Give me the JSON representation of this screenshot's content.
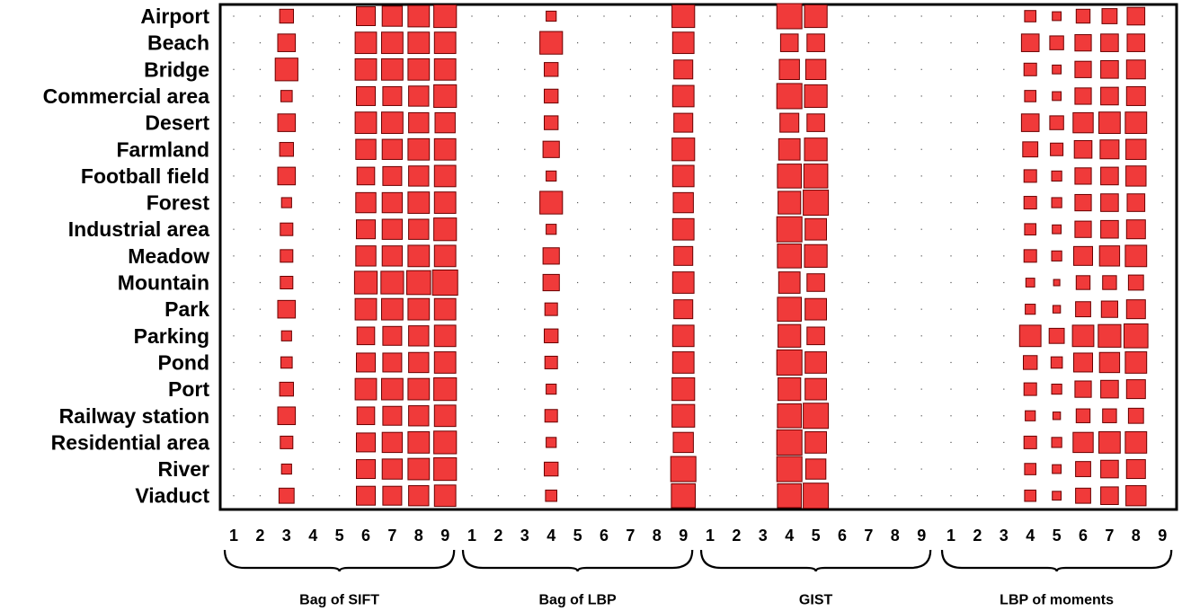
{
  "chart_data": {
    "type": "heatmap",
    "encoding": "square size is proportional to value (0 = empty cell, 1 = largest square)",
    "rows": [
      "Airport",
      "Beach",
      "Bridge",
      "Commercial area",
      "Desert",
      "Farmland",
      "Football field",
      "Forest",
      "Industrial area",
      "Meadow",
      "Mountain",
      "Park",
      "Parking",
      "Pond",
      "Port",
      "Railway station",
      "Residential area",
      "River",
      "Viaduct"
    ],
    "columns": [
      "1",
      "2",
      "3",
      "4",
      "5",
      "6",
      "7",
      "8",
      "9"
    ],
    "groups": [
      {
        "name": "Bag of SIFT",
        "values": [
          [
            0,
            0,
            0.55,
            0,
            0,
            0.75,
            0.8,
            0.85,
            0.9
          ],
          [
            0,
            0,
            0.7,
            0,
            0,
            0.85,
            0.85,
            0.85,
            0.85
          ],
          [
            0,
            0,
            0.9,
            0,
            0,
            0.85,
            0.85,
            0.85,
            0.85
          ],
          [
            0,
            0,
            0.45,
            0,
            0,
            0.75,
            0.75,
            0.8,
            0.9
          ],
          [
            0,
            0,
            0.7,
            0,
            0,
            0.85,
            0.85,
            0.8,
            0.8
          ],
          [
            0,
            0,
            0.55,
            0,
            0,
            0.8,
            0.8,
            0.85,
            0.85
          ],
          [
            0,
            0,
            0.7,
            0,
            0,
            0.7,
            0.75,
            0.8,
            0.85
          ],
          [
            0,
            0,
            0.4,
            0,
            0,
            0.8,
            0.8,
            0.85,
            0.85
          ],
          [
            0,
            0,
            0.5,
            0,
            0,
            0.75,
            0.8,
            0.8,
            0.9
          ],
          [
            0,
            0,
            0.5,
            0,
            0,
            0.8,
            0.8,
            0.85,
            0.85
          ],
          [
            0,
            0,
            0.5,
            0,
            0,
            0.9,
            0.9,
            0.95,
            1.0
          ],
          [
            0,
            0,
            0.7,
            0,
            0,
            0.85,
            0.85,
            0.85,
            0.85
          ],
          [
            0,
            0,
            0.4,
            0,
            0,
            0.7,
            0.75,
            0.8,
            0.85
          ],
          [
            0,
            0,
            0.45,
            0,
            0,
            0.75,
            0.75,
            0.8,
            0.85
          ],
          [
            0,
            0,
            0.55,
            0,
            0,
            0.85,
            0.85,
            0.85,
            0.9
          ],
          [
            0,
            0,
            0.7,
            0,
            0,
            0.7,
            0.75,
            0.8,
            0.85
          ],
          [
            0,
            0,
            0.5,
            0,
            0,
            0.75,
            0.8,
            0.85,
            0.9
          ],
          [
            0,
            0,
            0.4,
            0,
            0,
            0.75,
            0.8,
            0.85,
            0.9
          ],
          [
            0,
            0,
            0.6,
            0,
            0,
            0.75,
            0.75,
            0.8,
            0.85
          ]
        ]
      },
      {
        "name": "Bag of LBP",
        "values": [
          [
            0,
            0,
            0,
            0.4,
            0,
            0,
            0,
            0,
            0.9
          ],
          [
            0,
            0,
            0,
            0.9,
            0,
            0,
            0,
            0,
            0.85
          ],
          [
            0,
            0,
            0,
            0.55,
            0,
            0,
            0,
            0,
            0.75
          ],
          [
            0,
            0,
            0,
            0.55,
            0,
            0,
            0,
            0,
            0.85
          ],
          [
            0,
            0,
            0,
            0.55,
            0,
            0,
            0,
            0,
            0.75
          ],
          [
            0,
            0,
            0,
            0.65,
            0,
            0,
            0,
            0,
            0.9
          ],
          [
            0,
            0,
            0,
            0.4,
            0,
            0,
            0,
            0,
            0.85
          ],
          [
            0,
            0,
            0,
            0.9,
            0,
            0,
            0,
            0,
            0.8
          ],
          [
            0,
            0,
            0,
            0.4,
            0,
            0,
            0,
            0,
            0.85
          ],
          [
            0,
            0,
            0,
            0.65,
            0,
            0,
            0,
            0,
            0.75
          ],
          [
            0,
            0,
            0,
            0.65,
            0,
            0,
            0,
            0,
            0.85
          ],
          [
            0,
            0,
            0,
            0.5,
            0,
            0,
            0,
            0,
            0.75
          ],
          [
            0,
            0,
            0,
            0.55,
            0,
            0,
            0,
            0,
            0.85
          ],
          [
            0,
            0,
            0,
            0.5,
            0,
            0,
            0,
            0,
            0.85
          ],
          [
            0,
            0,
            0,
            0.4,
            0,
            0,
            0,
            0,
            0.9
          ],
          [
            0,
            0,
            0,
            0.5,
            0,
            0,
            0,
            0,
            0.9
          ],
          [
            0,
            0,
            0,
            0.4,
            0,
            0,
            0,
            0,
            0.8
          ],
          [
            0,
            0,
            0,
            0.55,
            0,
            0,
            0,
            0,
            1.0
          ],
          [
            0,
            0,
            0,
            0.45,
            0,
            0,
            0,
            0,
            0.95
          ]
        ]
      },
      {
        "name": "GIST",
        "values": [
          [
            0,
            0,
            0,
            1.0,
            0.9,
            0,
            0,
            0,
            0
          ],
          [
            0,
            0,
            0,
            0.7,
            0.7,
            0,
            0,
            0,
            0
          ],
          [
            0,
            0,
            0,
            0.8,
            0.8,
            0,
            0,
            0,
            0
          ],
          [
            0,
            0,
            0,
            1.0,
            0.9,
            0,
            0,
            0,
            0
          ],
          [
            0,
            0,
            0,
            0.75,
            0.7,
            0,
            0,
            0,
            0
          ],
          [
            0,
            0,
            0,
            0.85,
            0.9,
            0,
            0,
            0,
            0
          ],
          [
            0,
            0,
            0,
            0.95,
            0.95,
            0,
            0,
            0,
            0
          ],
          [
            0,
            0,
            0,
            0.9,
            1.0,
            0,
            0,
            0,
            0
          ],
          [
            0,
            0,
            0,
            1.0,
            0.85,
            0,
            0,
            0,
            0
          ],
          [
            0,
            0,
            0,
            0.95,
            0.9,
            0,
            0,
            0,
            0
          ],
          [
            0,
            0,
            0,
            0.85,
            0.7,
            0,
            0,
            0,
            0
          ],
          [
            0,
            0,
            0,
            0.95,
            0.85,
            0,
            0,
            0,
            0
          ],
          [
            0,
            0,
            0,
            0.9,
            0.7,
            0,
            0,
            0,
            0
          ],
          [
            0,
            0,
            0,
            1.0,
            0.85,
            0,
            0,
            0,
            0
          ],
          [
            0,
            0,
            0,
            0.9,
            0.85,
            0,
            0,
            0,
            0
          ],
          [
            0,
            0,
            0,
            0.95,
            1.0,
            0,
            0,
            0,
            0
          ],
          [
            0,
            0,
            0,
            1.0,
            0.85,
            0,
            0,
            0,
            0
          ],
          [
            0,
            0,
            0,
            1.0,
            0.8,
            0,
            0,
            0,
            0
          ],
          [
            0,
            0,
            0,
            0.95,
            1.0,
            0,
            0,
            0,
            0
          ]
        ]
      },
      {
        "name": "LBP of moments",
        "values": [
          [
            0,
            0,
            0,
            0.45,
            0.35,
            0.55,
            0.6,
            0.7,
            0
          ],
          [
            0,
            0,
            0,
            0.7,
            0.55,
            0.65,
            0.7,
            0.7,
            0
          ],
          [
            0,
            0,
            0,
            0.5,
            0.35,
            0.65,
            0.7,
            0.75,
            0
          ],
          [
            0,
            0,
            0,
            0.45,
            0.35,
            0.65,
            0.7,
            0.75,
            0
          ],
          [
            0,
            0,
            0,
            0.7,
            0.55,
            0.8,
            0.85,
            0.85,
            0
          ],
          [
            0,
            0,
            0,
            0.6,
            0.5,
            0.7,
            0.75,
            0.8,
            0
          ],
          [
            0,
            0,
            0,
            0.5,
            0.4,
            0.65,
            0.7,
            0.8,
            0
          ],
          [
            0,
            0,
            0,
            0.5,
            0.4,
            0.65,
            0.7,
            0.7,
            0
          ],
          [
            0,
            0,
            0,
            0.45,
            0.35,
            0.65,
            0.7,
            0.75,
            0
          ],
          [
            0,
            0,
            0,
            0.5,
            0.4,
            0.75,
            0.8,
            0.85,
            0
          ],
          [
            0,
            0,
            0,
            0.35,
            0.25,
            0.55,
            0.55,
            0.6,
            0
          ],
          [
            0,
            0,
            0,
            0.4,
            0.3,
            0.6,
            0.65,
            0.75,
            0
          ],
          [
            0,
            0,
            0,
            0.85,
            0.6,
            0.85,
            0.9,
            0.95,
            0
          ],
          [
            0,
            0,
            0,
            0.55,
            0.45,
            0.75,
            0.8,
            0.85,
            0
          ],
          [
            0,
            0,
            0,
            0.5,
            0.4,
            0.65,
            0.7,
            0.75,
            0
          ],
          [
            0,
            0,
            0,
            0.4,
            0.3,
            0.55,
            0.55,
            0.6,
            0
          ],
          [
            0,
            0,
            0,
            0.5,
            0.4,
            0.8,
            0.85,
            0.85,
            0
          ],
          [
            0,
            0,
            0,
            0.45,
            0.35,
            0.6,
            0.7,
            0.75,
            0
          ],
          [
            0,
            0,
            0,
            0.45,
            0.35,
            0.6,
            0.7,
            0.8,
            0
          ]
        ]
      }
    ],
    "title": "",
    "xlabel": "",
    "ylabel": "",
    "grid": true,
    "legend": "none",
    "colors": {
      "fill": "#f03a3a",
      "stroke": "#6a0000",
      "frame": "#000000",
      "dot": "#555555"
    }
  }
}
